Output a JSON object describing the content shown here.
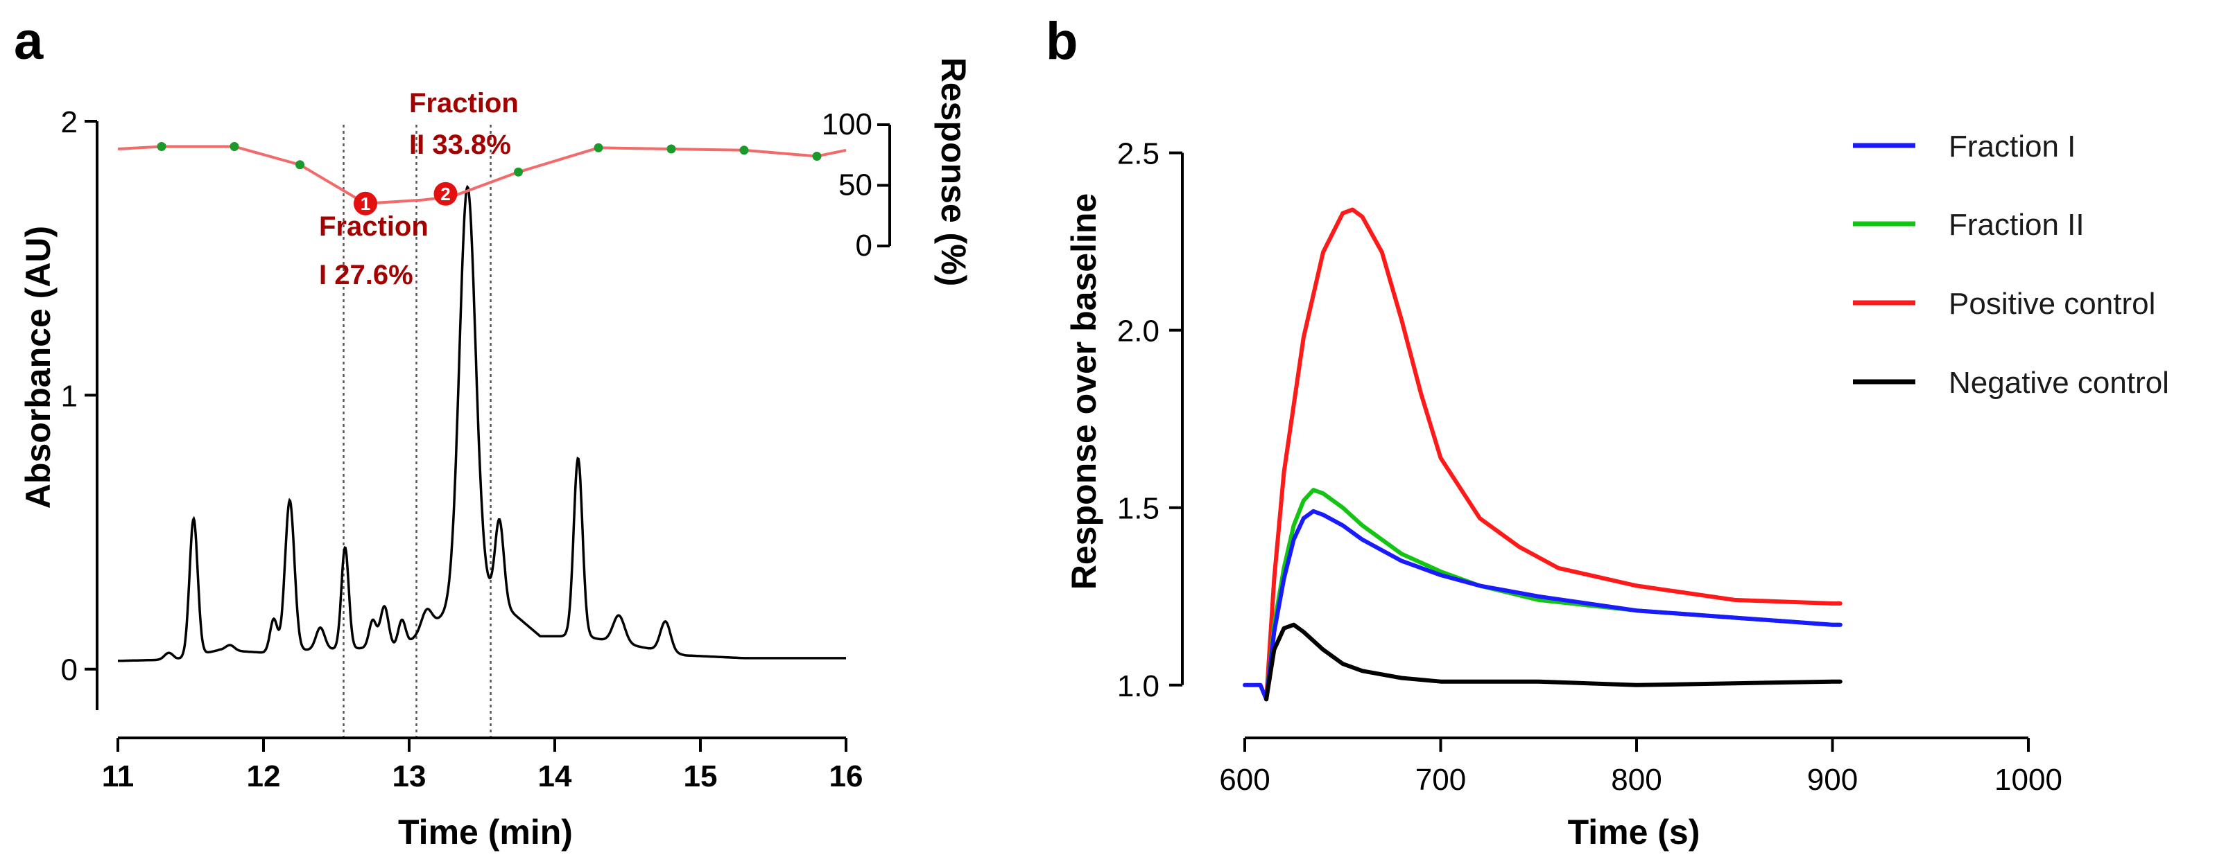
{
  "chart_data": [
    {
      "panel": "a",
      "type": "line",
      "xlabel": "Time (min)",
      "ylabel": "Absorbance (AU)",
      "y2label": "Response (%)",
      "xlim": [
        11,
        16
      ],
      "ylim": [
        -0.15,
        2.0
      ],
      "y2lim": [
        0,
        100
      ],
      "x_ticks": [
        11,
        12,
        13,
        14,
        15,
        16
      ],
      "y_ticks": [
        0,
        1,
        2
      ],
      "y2_ticks": [
        0,
        50,
        100
      ],
      "colors": {
        "chromatogram": "#000000",
        "response_line": "#f26b6b",
        "response_points": "#1a9a2a",
        "annotation": "#a30000",
        "fraction_lines": "#555555"
      },
      "chromatogram": {
        "baseline": [
          [
            11.0,
            0.03
          ],
          [
            11.4,
            0.035
          ],
          [
            11.7,
            0.07
          ],
          [
            12.0,
            0.06
          ],
          [
            12.3,
            0.07
          ],
          [
            12.9,
            0.08
          ],
          [
            13.0,
            0.1
          ],
          [
            13.5,
            0.3
          ],
          [
            13.9,
            0.12
          ],
          [
            14.2,
            0.12
          ],
          [
            14.9,
            0.05
          ],
          [
            15.3,
            0.04
          ],
          [
            16.0,
            0.04
          ]
        ],
        "peaks": [
          {
            "x": 11.35,
            "h": 0.025,
            "w": 0.03
          },
          {
            "x": 11.52,
            "h": 0.5,
            "w": 0.028
          },
          {
            "x": 11.77,
            "h": 0.02,
            "w": 0.03
          },
          {
            "x": 12.07,
            "h": 0.12,
            "w": 0.025
          },
          {
            "x": 12.18,
            "h": 0.55,
            "w": 0.032
          },
          {
            "x": 12.39,
            "h": 0.08,
            "w": 0.03
          },
          {
            "x": 12.56,
            "h": 0.37,
            "w": 0.025
          },
          {
            "x": 12.75,
            "h": 0.1,
            "w": 0.025
          },
          {
            "x": 12.83,
            "h": 0.15,
            "w": 0.028
          },
          {
            "x": 12.95,
            "h": 0.09,
            "w": 0.025
          },
          {
            "x": 13.12,
            "h": 0.07,
            "w": 0.035
          },
          {
            "x": 13.4,
            "h": 1.5,
            "w": 0.055
          },
          {
            "x": 13.62,
            "h": 0.3,
            "w": 0.03
          },
          {
            "x": 14.16,
            "h": 0.65,
            "w": 0.03
          },
          {
            "x": 14.44,
            "h": 0.1,
            "w": 0.04
          },
          {
            "x": 14.76,
            "h": 0.11,
            "w": 0.035
          }
        ]
      },
      "response": {
        "x": [
          11.0,
          11.3,
          11.8,
          12.25,
          12.7,
          13.1,
          13.3,
          13.75,
          14.3,
          14.8,
          15.3,
          15.8,
          16.0
        ],
        "y": [
          80,
          82,
          82,
          67,
          35,
          38,
          41,
          61,
          81,
          80,
          79,
          74,
          79
        ],
        "markers": [
          false,
          true,
          true,
          true,
          false,
          false,
          false,
          true,
          true,
          true,
          true,
          true,
          false
        ]
      },
      "fraction_markers": [
        {
          "label": "1",
          "x": 12.7,
          "y": 35
        },
        {
          "label": "2",
          "x": 13.25,
          "y": 43
        }
      ],
      "fraction_boundaries": [
        12.55,
        13.05,
        13.56
      ],
      "annotations": [
        {
          "lines": [
            "Fraction",
            "II 33.8%"
          ]
        },
        {
          "lines": [
            "Fraction",
            "I 27.6%"
          ]
        }
      ]
    },
    {
      "panel": "b",
      "type": "line",
      "xlabel": "Time (s)",
      "ylabel": "Response over baseline",
      "xlim": [
        600,
        1000
      ],
      "ylim": [
        0.9,
        2.55
      ],
      "x_ticks": [
        600,
        700,
        800,
        900,
        1000
      ],
      "y_ticks": [
        "1.0",
        "1.5",
        "2.0",
        "2.5"
      ],
      "legend_position": "top-right",
      "series": [
        {
          "name": "Fraction I",
          "color": "#1a1aff",
          "x": [
            600,
            608,
            611,
            615,
            620,
            625,
            630,
            635,
            640,
            650,
            660,
            680,
            700,
            720,
            750,
            800,
            850,
            900,
            904
          ],
          "y": [
            1.0,
            1.0,
            0.96,
            1.15,
            1.3,
            1.41,
            1.47,
            1.49,
            1.48,
            1.45,
            1.41,
            1.35,
            1.31,
            1.28,
            1.25,
            1.21,
            1.19,
            1.17,
            1.17
          ]
        },
        {
          "name": "Fraction II",
          "color": "#13c413",
          "x": [
            611,
            615,
            620,
            625,
            630,
            635,
            640,
            650,
            660,
            680,
            700,
            720,
            750,
            800,
            850,
            900,
            904
          ],
          "y": [
            0.96,
            1.17,
            1.33,
            1.45,
            1.52,
            1.55,
            1.54,
            1.5,
            1.45,
            1.37,
            1.32,
            1.28,
            1.24,
            1.21,
            1.19,
            1.17,
            1.17
          ]
        },
        {
          "name": "Positive control",
          "color": "#ff1a1a",
          "x": [
            611,
            615,
            620,
            630,
            640,
            650,
            655,
            660,
            670,
            680,
            690,
            700,
            720,
            740,
            760,
            800,
            850,
            900,
            904
          ],
          "y": [
            0.96,
            1.3,
            1.6,
            1.98,
            2.22,
            2.33,
            2.34,
            2.32,
            2.22,
            2.03,
            1.82,
            1.64,
            1.47,
            1.39,
            1.33,
            1.28,
            1.24,
            1.23,
            1.23
          ]
        },
        {
          "name": "Negative control",
          "color": "#000000",
          "x": [
            611,
            615,
            620,
            625,
            630,
            640,
            650,
            660,
            680,
            700,
            750,
            800,
            900,
            904
          ],
          "y": [
            0.96,
            1.1,
            1.16,
            1.17,
            1.15,
            1.1,
            1.06,
            1.04,
            1.02,
            1.01,
            1.01,
            1.0,
            1.01,
            1.01
          ]
        }
      ]
    }
  ]
}
